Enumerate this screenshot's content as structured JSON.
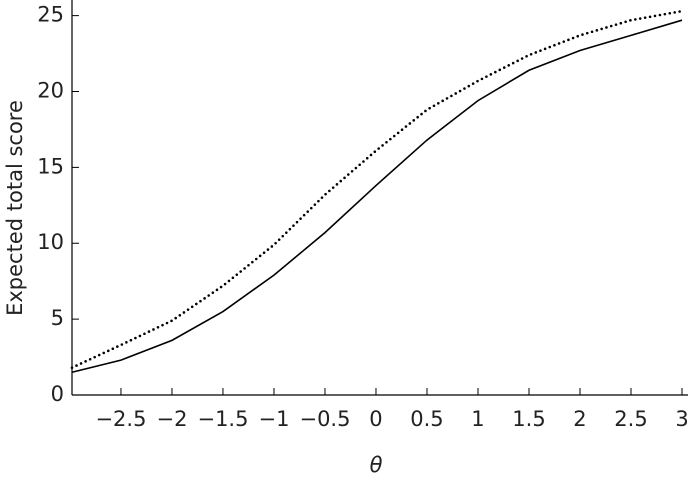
{
  "chart_data": {
    "type": "line",
    "xlabel": "θ",
    "ylabel": "Expected total score",
    "x": [
      -2.98,
      -2.5,
      -2,
      -1.5,
      -1,
      -0.5,
      0,
      0.5,
      1,
      1.5,
      2,
      2.5,
      3
    ],
    "series": [
      {
        "color": "#000000",
        "style": "solid",
        "values": [
          1.5,
          2.3,
          3.6,
          5.5,
          7.9,
          10.7,
          13.8,
          16.8,
          19.4,
          21.4,
          22.7,
          23.7,
          24.7
        ]
      },
      {
        "color": "#000000",
        "style": "dotted",
        "values": [
          1.8,
          3.3,
          4.9,
          7.2,
          9.9,
          13.2,
          16.1,
          18.8,
          20.7,
          22.4,
          23.7,
          24.7,
          25.3
        ]
      }
    ],
    "xlim": [
      -2.98,
      3
    ],
    "ylim": [
      0,
      25.7
    ],
    "xticks": [
      {
        "value": -2.5,
        "label": "−2.5"
      },
      {
        "value": -2,
        "label": "−2"
      },
      {
        "value": -1.5,
        "label": "−1.5"
      },
      {
        "value": -1,
        "label": "−1"
      },
      {
        "value": -0.5,
        "label": "−0.5"
      },
      0,
      0.5,
      1,
      1.5,
      2,
      2.5,
      3
    ],
    "yticks": [
      0,
      5,
      10,
      15,
      20,
      25
    ],
    "grid": false
  }
}
